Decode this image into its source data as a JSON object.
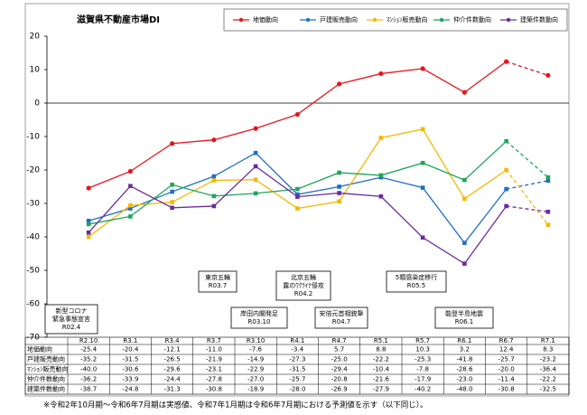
{
  "chart_data": {
    "type": "line",
    "title": "滋賀県不動産市場DI",
    "categories": [
      "R2.10",
      "R3.1",
      "R3.4",
      "R3.7",
      "R3.10",
      "R4.1",
      "R4.7",
      "R5.1",
      "R5.7",
      "R6.1",
      "R6.7",
      "R7.1"
    ],
    "series": [
      {
        "name": "地価動向",
        "color": "#e8141c",
        "values": [
          -25.4,
          -20.4,
          -12.1,
          -11.0,
          -7.6,
          -3.4,
          5.7,
          8.8,
          10.3,
          3.2,
          12.4,
          8.3
        ],
        "value_labels": [
          "-25.4",
          "-20.4",
          "-12.1",
          "-11.0",
          "-7.6",
          "-3.4",
          "5.7",
          "8.8",
          "10.3",
          "3.2",
          "12.4",
          "8.3"
        ]
      },
      {
        "name": "戸建販売動向",
        "color": "#1f6fc4",
        "values": [
          -35.2,
          -31.5,
          -26.5,
          -21.9,
          -14.9,
          -27.3,
          -25.0,
          -22.2,
          -25.3,
          -41.8,
          -25.7,
          -23.2
        ],
        "value_labels": [
          "-35.2",
          "-31.5",
          "-26.5",
          "-21.9",
          "-14.9",
          "-27.3",
          "-25.0",
          "-22.2",
          "-25.3",
          "-41.8",
          "-25.7",
          "-23.2"
        ]
      },
      {
        "name": "ﾏﾝｼｮﾝ販売動向",
        "color": "#f5b800",
        "values": [
          -40.0,
          -30.6,
          -29.6,
          -23.1,
          -22.9,
          -31.5,
          -29.4,
          -10.4,
          -7.8,
          -28.6,
          -20.0,
          -36.4
        ],
        "value_labels": [
          "-40.0",
          "-30.6",
          "-29.6",
          "-23.1",
          "-22.9",
          "-31.5",
          "-29.4",
          "-10.4",
          "-7.8",
          "-28.6",
          "-20.0",
          "-36.4"
        ]
      },
      {
        "name": "仲介件数動向",
        "color": "#1fa55a",
        "values": [
          -36.2,
          -33.9,
          -24.4,
          -27.8,
          -27.0,
          -25.7,
          -20.8,
          -21.6,
          -17.9,
          -23.0,
          -11.4,
          -22.2
        ],
        "value_labels": [
          "-36.2",
          "-33.9",
          "-24.4",
          "-27.8",
          "-27.0",
          "-25.7",
          "-20.8",
          "-21.6",
          "-17.9",
          "-23.0",
          "-11.4",
          "-22.2"
        ]
      },
      {
        "name": "建築件数動向",
        "color": "#6a2c9c",
        "values": [
          -38.7,
          -24.8,
          -31.3,
          -30.8,
          -18.9,
          -28.0,
          -26.9,
          -27.9,
          -40.2,
          -48.0,
          -30.8,
          -32.5
        ],
        "value_labels": [
          "-38.7",
          "-24.8",
          "-31.3",
          "-30.8",
          "-18.9",
          "-28.0",
          "-26.9",
          "-27.9",
          "-40.2",
          "-48.0",
          "-30.8",
          "-32.5"
        ]
      }
    ],
    "ylim": [
      -70,
      20
    ],
    "yticks": [
      -70,
      -60,
      -50,
      -40,
      -30,
      -20,
      -10,
      0,
      10,
      20
    ],
    "annotations": [
      [
        "新型コロナ",
        "緊急事態宣言",
        "R02.4"
      ],
      [
        "東京五輪",
        "R03.7"
      ],
      [
        "岸田内閣発足",
        "R03.10"
      ],
      [
        "北京五輪",
        "露のｳｸﾗｲﾅ侵攻",
        "R04.2"
      ],
      [
        "安倍元首相銃撃",
        "R04.7"
      ],
      [
        "5類感染症移行",
        "R05.5"
      ],
      [
        "能登半島地震",
        "R06.1"
      ]
    ],
    "footnote": "※令和2年10月期～令和6年7月期は実感値、令和7年1月期は令和6年7月期における予測値を示す（以下同じ）。"
  }
}
